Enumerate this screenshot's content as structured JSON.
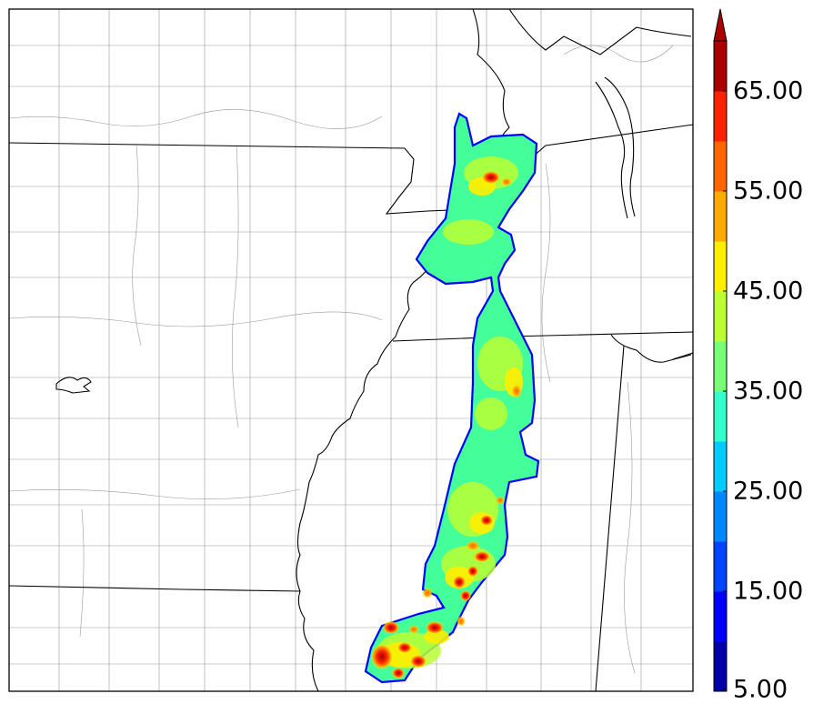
{
  "colorbar": {
    "ticks": [
      "5.00",
      "15.00",
      "25.00",
      "35.00",
      "45.00",
      "55.00",
      "65.00"
    ],
    "levels": [
      5,
      10,
      15,
      20,
      25,
      30,
      35,
      40,
      45,
      50,
      55,
      60,
      65,
      70
    ],
    "colors": [
      "#0000aa",
      "#0000ff",
      "#0044ff",
      "#0088ff",
      "#00ccff",
      "#33ffcc",
      "#77ff77",
      "#bbff33",
      "#ffee00",
      "#ffaa00",
      "#ff6600",
      "#ff2200",
      "#aa0000"
    ],
    "extend": "max"
  },
  "colors": {
    "state_border": "#000000",
    "county_border": "#999999",
    "field_edge": "#0000ff"
  }
}
